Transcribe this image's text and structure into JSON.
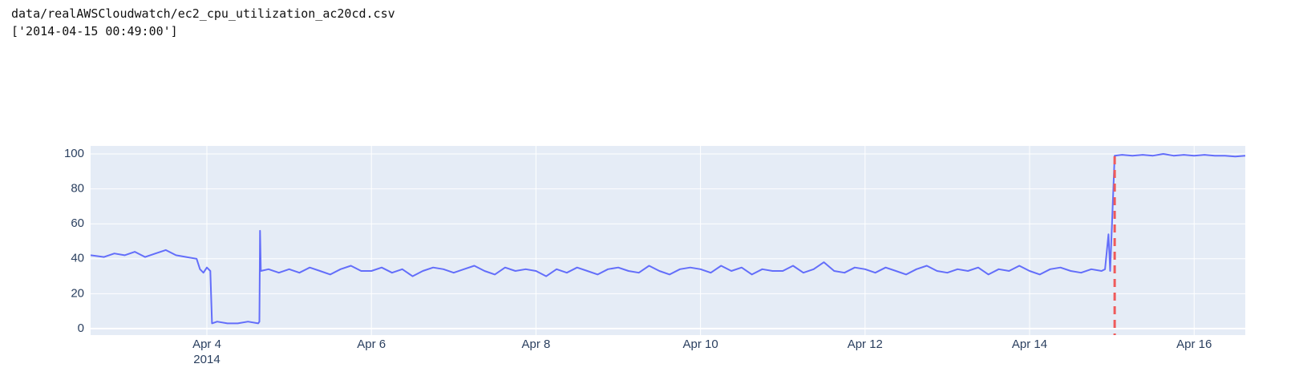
{
  "header": {
    "file": "data/realAWSCloudwatch/ec2_cpu_utilization_ac20cd.csv",
    "anomalies": "['2014-04-15 00:49:00']"
  },
  "chart_data": {
    "type": "line",
    "color": "#636efa",
    "grid": true,
    "xlim": [
      "2014-04-02 14:05",
      "2014-04-16 14:55"
    ],
    "ylim": [
      -3.7,
      104.6
    ],
    "yticks": [
      0,
      20,
      40,
      60,
      80,
      100
    ],
    "xticks": [
      {
        "value": "2014-04-04",
        "label": "Apr 4"
      },
      {
        "value": "2014-04-06",
        "label": "Apr 6"
      },
      {
        "value": "2014-04-08",
        "label": "Apr 8"
      },
      {
        "value": "2014-04-10",
        "label": "Apr 10"
      },
      {
        "value": "2014-04-12",
        "label": "Apr 12"
      },
      {
        "value": "2014-04-14",
        "label": "Apr 14"
      },
      {
        "value": "2014-04-16",
        "label": "Apr 16"
      }
    ],
    "x_year_label": "2014",
    "vline": {
      "x": "2014-04-15 00:49",
      "color": "#ef5a5a"
    },
    "x": [
      "2014-04-02 14:05",
      "2014-04-02 18:00",
      "2014-04-02 21:00",
      "2014-04-03 00:00",
      "2014-04-03 03:00",
      "2014-04-03 06:00",
      "2014-04-03 09:00",
      "2014-04-03 12:00",
      "2014-04-03 15:00",
      "2014-04-03 18:00",
      "2014-04-03 21:00",
      "2014-04-03 22:00",
      "2014-04-03 23:00",
      "2014-04-04 00:00",
      "2014-04-04 01:00",
      "2014-04-04 01:30",
      "2014-04-04 03:00",
      "2014-04-04 06:00",
      "2014-04-04 09:00",
      "2014-04-04 12:00",
      "2014-04-04 15:00",
      "2014-04-04 15:20",
      "2014-04-04 15:30",
      "2014-04-04 15:45",
      "2014-04-04 18:00",
      "2014-04-04 21:00",
      "2014-04-05 00:00",
      "2014-04-05 03:00",
      "2014-04-05 06:00",
      "2014-04-05 09:00",
      "2014-04-05 12:00",
      "2014-04-05 15:00",
      "2014-04-05 18:00",
      "2014-04-05 21:00",
      "2014-04-06 00:00",
      "2014-04-06 03:00",
      "2014-04-06 06:00",
      "2014-04-06 09:00",
      "2014-04-06 12:00",
      "2014-04-06 15:00",
      "2014-04-06 18:00",
      "2014-04-06 21:00",
      "2014-04-07 00:00",
      "2014-04-07 03:00",
      "2014-04-07 06:00",
      "2014-04-07 09:00",
      "2014-04-07 12:00",
      "2014-04-07 15:00",
      "2014-04-07 18:00",
      "2014-04-07 21:00",
      "2014-04-08 00:00",
      "2014-04-08 03:00",
      "2014-04-08 06:00",
      "2014-04-08 09:00",
      "2014-04-08 12:00",
      "2014-04-08 15:00",
      "2014-04-08 18:00",
      "2014-04-08 21:00",
      "2014-04-09 00:00",
      "2014-04-09 03:00",
      "2014-04-09 06:00",
      "2014-04-09 09:00",
      "2014-04-09 12:00",
      "2014-04-09 15:00",
      "2014-04-09 18:00",
      "2014-04-09 21:00",
      "2014-04-10 00:00",
      "2014-04-10 03:00",
      "2014-04-10 06:00",
      "2014-04-10 09:00",
      "2014-04-10 12:00",
      "2014-04-10 15:00",
      "2014-04-10 18:00",
      "2014-04-10 21:00",
      "2014-04-11 00:00",
      "2014-04-11 03:00",
      "2014-04-11 06:00",
      "2014-04-11 09:00",
      "2014-04-11 12:00",
      "2014-04-11 15:00",
      "2014-04-11 18:00",
      "2014-04-11 21:00",
      "2014-04-12 00:00",
      "2014-04-12 03:00",
      "2014-04-12 06:00",
      "2014-04-12 09:00",
      "2014-04-12 12:00",
      "2014-04-12 15:00",
      "2014-04-12 18:00",
      "2014-04-12 21:00",
      "2014-04-13 00:00",
      "2014-04-13 03:00",
      "2014-04-13 06:00",
      "2014-04-13 09:00",
      "2014-04-13 12:00",
      "2014-04-13 15:00",
      "2014-04-13 18:00",
      "2014-04-13 21:00",
      "2014-04-14 00:00",
      "2014-04-14 03:00",
      "2014-04-14 06:00",
      "2014-04-14 09:00",
      "2014-04-14 12:00",
      "2014-04-14 15:00",
      "2014-04-14 18:00",
      "2014-04-14 21:00",
      "2014-04-14 22:00",
      "2014-04-14 23:00",
      "2014-04-14 23:30",
      "2014-04-15 00:49",
      "2014-04-15 03:00",
      "2014-04-15 06:00",
      "2014-04-15 09:00",
      "2014-04-15 12:00",
      "2014-04-15 15:00",
      "2014-04-15 18:00",
      "2014-04-15 21:00",
      "2014-04-16 00:00",
      "2014-04-16 03:00",
      "2014-04-16 06:00",
      "2014-04-16 09:00",
      "2014-04-16 12:00",
      "2014-04-16 14:55"
    ],
    "values": [
      42,
      41,
      43,
      42,
      44,
      41,
      43,
      45,
      42,
      41,
      40,
      34,
      32,
      35,
      33,
      3,
      4,
      3,
      3,
      4,
      3,
      4,
      56,
      33,
      34,
      32,
      34,
      32,
      35,
      33,
      31,
      34,
      36,
      33,
      33,
      35,
      32,
      34,
      30,
      33,
      35,
      34,
      32,
      34,
      36,
      33,
      31,
      35,
      33,
      34,
      33,
      30,
      34,
      32,
      35,
      33,
      31,
      34,
      35,
      33,
      32,
      36,
      33,
      31,
      34,
      35,
      34,
      32,
      36,
      33,
      35,
      31,
      34,
      33,
      33,
      36,
      32,
      34,
      38,
      33,
      32,
      35,
      34,
      32,
      35,
      33,
      31,
      34,
      36,
      33,
      32,
      34,
      33,
      35,
      31,
      34,
      33,
      36,
      33,
      31,
      34,
      35,
      33,
      32,
      34,
      33,
      34,
      54,
      33,
      99,
      99.5,
      99,
      99.5,
      99,
      100,
      99,
      99.5,
      99,
      99.5,
      99,
      99,
      98.5,
      99
    ]
  }
}
